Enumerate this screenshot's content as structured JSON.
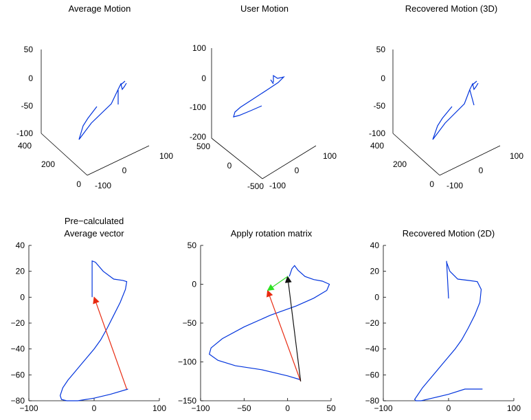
{
  "figure": {
    "background": "#ffffff",
    "line_color": "#0033dd"
  },
  "chart_data": [
    {
      "id": "average-motion-3d",
      "type": "line",
      "projection": "3d",
      "title": [
        "Average Motion"
      ],
      "z_ticks": [
        "50",
        "0",
        "-50",
        "-100"
      ],
      "y_ticks": [
        "400",
        "200",
        "0"
      ],
      "x_ticks": [
        "-100",
        "0",
        "100"
      ],
      "series": [
        {
          "color": "#0033dd",
          "x": [
            60,
            20,
            10,
            0,
            30,
            55,
            55,
            48,
            30,
            5
          ],
          "y": [
            340,
            300,
            260,
            220,
            160,
            150,
            130,
            110,
            80,
            50
          ],
          "z": [
            15,
            5,
            0,
            -15,
            -35,
            -20,
            10,
            -15,
            -40,
            -90
          ]
        }
      ]
    },
    {
      "id": "user-motion-3d",
      "type": "line",
      "projection": "3d",
      "title": [
        "User Motion"
      ],
      "z_ticks": [
        "100",
        "0",
        "-100",
        "-200"
      ],
      "y_ticks": [
        "500",
        "0",
        "-500"
      ],
      "x_ticks": [
        "-100",
        "0",
        "100"
      ],
      "series": [
        {
          "color": "#0033dd",
          "x": [
            40,
            20,
            0,
            -30,
            -60,
            -40,
            0,
            20
          ],
          "y": [
            200,
            180,
            120,
            20,
            -100,
            -250,
            -350,
            -400
          ],
          "z": [
            10,
            20,
            5,
            -40,
            -110,
            -100,
            -60,
            -30
          ]
        }
      ]
    },
    {
      "id": "recovered-motion-3d",
      "type": "line",
      "projection": "3d",
      "title": [
        "Recovered Motion (3D)"
      ],
      "z_ticks": [
        "50",
        "0",
        "-50",
        "-100"
      ],
      "y_ticks": [
        "400",
        "200",
        "0"
      ],
      "x_ticks": [
        "-100",
        "0",
        "100"
      ],
      "series": [
        {
          "color": "#0033dd",
          "x": [
            60,
            20,
            10,
            0,
            30,
            55,
            55,
            48,
            30,
            5
          ],
          "y": [
            340,
            300,
            260,
            220,
            160,
            150,
            130,
            110,
            80,
            50
          ],
          "z": [
            15,
            5,
            0,
            -15,
            -35,
            -20,
            10,
            -15,
            -40,
            -90
          ]
        }
      ]
    },
    {
      "id": "precalculated-average-vector",
      "type": "line",
      "title": [
        "Pre−calculated",
        "Average vector"
      ],
      "xlim": [
        -100,
        100
      ],
      "ylim": [
        -80,
        40
      ],
      "x_ticks": [
        -100,
        0,
        100
      ],
      "y_ticks": [
        40,
        20,
        0,
        -20,
        -40,
        -60,
        -80
      ],
      "series": [
        {
          "color": "#0033dd",
          "x": [
            -3,
            -3,
            2,
            14,
            30,
            44,
            50,
            48,
            40,
            30,
            20,
            10,
            0,
            -10,
            -20,
            -30,
            -40,
            -48,
            -52,
            -50,
            -42,
            -25,
            0,
            25,
            52
          ],
          "y": [
            0,
            28,
            27,
            20,
            14,
            13,
            12,
            6,
            -4,
            -14,
            -24,
            -33,
            -40,
            -46,
            -52,
            -58,
            -64,
            -70,
            -76,
            -79,
            -80,
            -80,
            -78,
            -75,
            -71
          ]
        }
      ],
      "arrows": [
        {
          "color": "#e82a10",
          "from": [
            50,
            -71
          ],
          "to": [
            0,
            0
          ]
        }
      ]
    },
    {
      "id": "apply-rotation-matrix",
      "type": "line",
      "title": [
        "Apply rotation matrix"
      ],
      "xlim": [
        -100,
        50
      ],
      "ylim": [
        -150,
        50
      ],
      "x_ticks": [
        -100,
        -50,
        0,
        50
      ],
      "y_ticks": [
        50,
        0,
        -50,
        -100,
        -150
      ],
      "series": [
        {
          "color": "#0033dd",
          "x": [
            2,
            5,
            8,
            12,
            20,
            30,
            40,
            48,
            45,
            30,
            10,
            -20,
            -50,
            -75,
            -88,
            -90,
            -80,
            -60,
            -30,
            0,
            15
          ],
          "y": [
            10,
            20,
            24,
            18,
            10,
            6,
            4,
            0,
            -8,
            -18,
            -28,
            -40,
            -55,
            -70,
            -82,
            -90,
            -98,
            -105,
            -110,
            -118,
            -123
          ]
        }
      ],
      "arrows": [
        {
          "color": "#e82a10",
          "from": [
            15,
            -125
          ],
          "to": [
            -23,
            -8
          ]
        },
        {
          "color": "#111111",
          "from": [
            15,
            -125
          ],
          "to": [
            0,
            10
          ]
        },
        {
          "color": "#2ee022",
          "from": [
            0,
            10
          ],
          "to": [
            -23,
            -8
          ]
        }
      ]
    },
    {
      "id": "recovered-motion-2d",
      "type": "line",
      "title": [
        "Recovered Motion (2D)"
      ],
      "xlim": [
        -100,
        100
      ],
      "ylim": [
        -80,
        40
      ],
      "x_ticks": [
        -100,
        0,
        100
      ],
      "y_ticks": [
        40,
        20,
        0,
        -20,
        -40,
        -60,
        -80
      ],
      "series": [
        {
          "color": "#0033dd",
          "x": [
            0,
            -3,
            -3,
            2,
            14,
            30,
            44,
            50,
            48,
            40,
            30,
            20,
            10,
            0,
            -10,
            -20,
            -30,
            -40,
            -48,
            -52,
            -50,
            -42,
            -25,
            0,
            25,
            52
          ],
          "y": [
            -1,
            28,
            27,
            20,
            14,
            13,
            12,
            6,
            -4,
            -14,
            -24,
            -33,
            -40,
            -46,
            -52,
            -58,
            -64,
            -70,
            -76,
            -79,
            -80,
            -80,
            -78,
            -75,
            -71,
            -71
          ]
        }
      ]
    }
  ]
}
